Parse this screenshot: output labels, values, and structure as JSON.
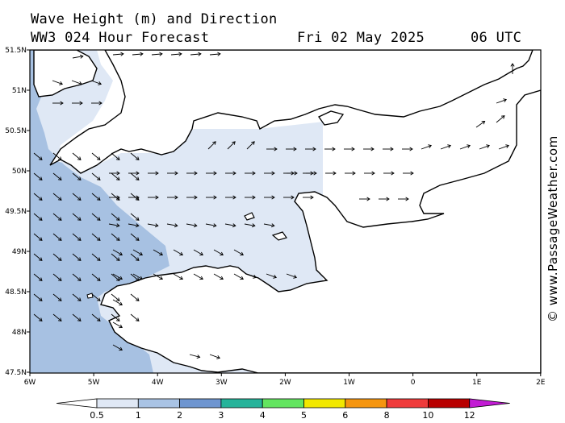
{
  "header": {
    "line1": "Wave Height (m) and Direction",
    "model": "WW3 024 Hour Forecast",
    "date": "Fri 02 May 2025",
    "time": "06 UTC"
  },
  "credit": "© www.PassageWeather.com",
  "axes": {
    "lat_labels": [
      "51.5N",
      "51N",
      "50.5N",
      "50N",
      "49.5N",
      "49N",
      "48.5N",
      "48N",
      "47.5N"
    ],
    "lon_labels": [
      "6W",
      "5W",
      "4W",
      "3W",
      "2W",
      "1W",
      "0",
      "1E",
      "2E"
    ]
  },
  "legend": {
    "breaks": [
      "0.5",
      "1",
      "2",
      "3",
      "4",
      "5",
      "6",
      "8",
      "10",
      "12"
    ],
    "colors": [
      "#e0e8f5",
      "#a9c3e4",
      "#6e95d0",
      "#26b39a",
      "#63e560",
      "#f2e800",
      "#f5950f",
      "#ef3b3b",
      "#b80000",
      "#c21cd4"
    ]
  },
  "colors": {
    "calm": "#dfe8f5",
    "light": "#a7c1e2",
    "land": "#ffffff",
    "coast": "#000000"
  }
}
